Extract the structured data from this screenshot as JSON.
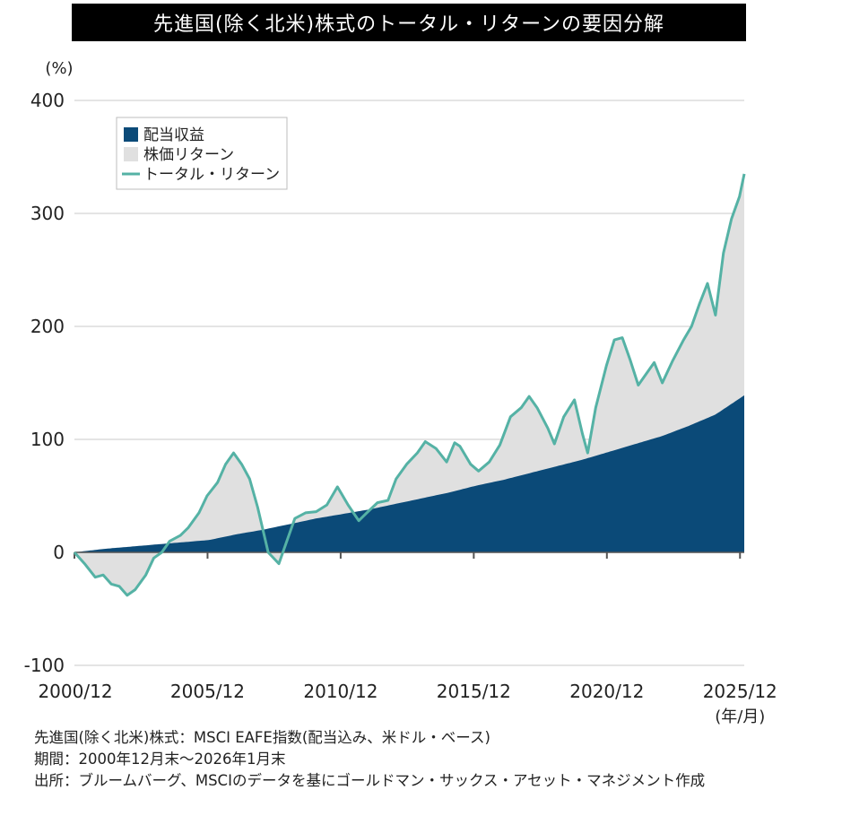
{
  "title": "先進国(除く北米)株式のトータル・リターンの要因分解",
  "chart_data": {
    "type": "area",
    "unit_label": "(%)",
    "y_ticks": [
      400,
      300,
      200,
      100,
      0,
      -100
    ],
    "ylim": [
      -100,
      400
    ],
    "x_ticks": [
      "2000/12",
      "2005/12",
      "2010/12",
      "2015/12",
      "2020/12",
      "2025/12"
    ],
    "x_unit_label": "(年/月)",
    "xlim": [
      2000.92,
      2026.08
    ],
    "legend": {
      "position": "top-left",
      "items": [
        {
          "label": "配当収益",
          "kind": "area"
        },
        {
          "label": "株価リターン",
          "kind": "area"
        },
        {
          "label": "トータル・リターン",
          "kind": "line"
        }
      ]
    },
    "colors": {
      "dividend": "#0b4a78",
      "price": "#e0e0e0",
      "total": "#55b2a5",
      "grid": "#c8c8c8",
      "axis": "#555555"
    },
    "series": [
      {
        "name": "配当収益",
        "x": [
          2000.92,
          2002.0,
          2003.0,
          2004.0,
          2005.0,
          2006.0,
          2007.0,
          2008.0,
          2009.0,
          2010.0,
          2011.0,
          2012.0,
          2013.0,
          2014.0,
          2015.0,
          2016.0,
          2017.0,
          2018.0,
          2019.0,
          2020.0,
          2021.0,
          2022.0,
          2023.0,
          2024.0,
          2025.0,
          2026.08
        ],
        "values": [
          0,
          3,
          5,
          7,
          9,
          11,
          16,
          20,
          25,
          30,
          34,
          38,
          43,
          48,
          53,
          59,
          64,
          70,
          76,
          82,
          89,
          96,
          103,
          112,
          122,
          139
        ]
      },
      {
        "name": "トータル・リターン",
        "x": [
          2000.92,
          2001.3,
          2001.7,
          2002.0,
          2002.3,
          2002.6,
          2002.9,
          2003.2,
          2003.6,
          2003.9,
          2004.2,
          2004.5,
          2004.9,
          2005.2,
          2005.6,
          2005.9,
          2006.3,
          2006.6,
          2006.9,
          2007.2,
          2007.5,
          2007.8,
          2008.2,
          2008.6,
          2008.9,
          2009.2,
          2009.6,
          2010.0,
          2010.4,
          2010.8,
          2011.2,
          2011.6,
          2011.9,
          2012.3,
          2012.7,
          2013.0,
          2013.4,
          2013.8,
          2014.1,
          2014.5,
          2014.9,
          2015.2,
          2015.4,
          2015.8,
          2016.1,
          2016.5,
          2016.9,
          2017.3,
          2017.7,
          2018.0,
          2018.3,
          2018.7,
          2018.95,
          2019.3,
          2019.7,
          2020.0,
          2020.2,
          2020.5,
          2020.9,
          2021.2,
          2021.5,
          2021.8,
          2022.1,
          2022.4,
          2022.7,
          2023.0,
          2023.4,
          2023.8,
          2024.1,
          2024.4,
          2024.7,
          2025.0,
          2025.3,
          2025.6,
          2025.9,
          2026.08
        ],
        "values": [
          0,
          -10,
          -22,
          -20,
          -28,
          -30,
          -38,
          -33,
          -20,
          -5,
          0,
          10,
          15,
          22,
          35,
          50,
          62,
          78,
          88,
          78,
          65,
          40,
          0,
          -10,
          10,
          30,
          35,
          36,
          42,
          58,
          42,
          28,
          35,
          44,
          46,
          65,
          78,
          88,
          98,
          92,
          80,
          97,
          94,
          78,
          72,
          80,
          95,
          120,
          128,
          138,
          128,
          110,
          96,
          120,
          135,
          105,
          88,
          128,
          165,
          188,
          190,
          170,
          148,
          158,
          168,
          150,
          170,
          188,
          200,
          220,
          238,
          210,
          265,
          295,
          315,
          335
        ]
      }
    ],
    "price_return_note": "株価リターン = トータル・リターン − 配当収益 (shaded between the two)"
  },
  "footnotes": [
    "先進国(除く北米)株式：MSCI EAFE指数(配当込み、米ドル・ベース)",
    "期間：2000年12月末～2026年1月末",
    "出所：ブルームバーグ、MSCIのデータを基にゴールドマン・サックス・アセット・マネジメント作成"
  ]
}
